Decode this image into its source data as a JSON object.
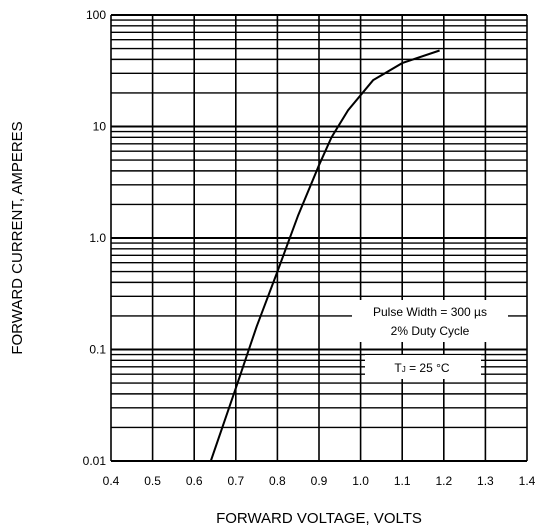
{
  "chart_data": {
    "type": "line",
    "xlabel": "FORWARD VOLTAGE, VOLTS",
    "ylabel": "FORWARD CURRENT, AMPERES",
    "xlim": [
      0.4,
      1.4
    ],
    "ylim": [
      0.01,
      100
    ],
    "y_scale": "log",
    "grid": true,
    "x_ticks": [
      "0.4",
      "0.5",
      "0.6",
      "0.7",
      "0.8",
      "0.9",
      "1.0",
      "1.1",
      "1.2",
      "1.3",
      "1.4"
    ],
    "y_ticks": [
      "0.01",
      "0.1",
      "1.0",
      "10",
      "100"
    ],
    "series": [
      {
        "x": [
          0.64,
          0.7,
          0.75,
          0.8,
          0.85,
          0.9,
          0.93,
          0.97,
          1.03,
          1.1,
          1.19
        ],
        "y": [
          0.01,
          0.045,
          0.16,
          0.5,
          1.6,
          4.5,
          8.0,
          14.0,
          26.0,
          37.0,
          48.0
        ]
      }
    ],
    "annotations": {
      "pulse_width": "Pulse Width = 300 µs",
      "duty_cycle": "2% Duty Cycle",
      "temp_main": "T",
      "temp_sub": "J",
      "temp_rest": " = 25 °C"
    }
  }
}
